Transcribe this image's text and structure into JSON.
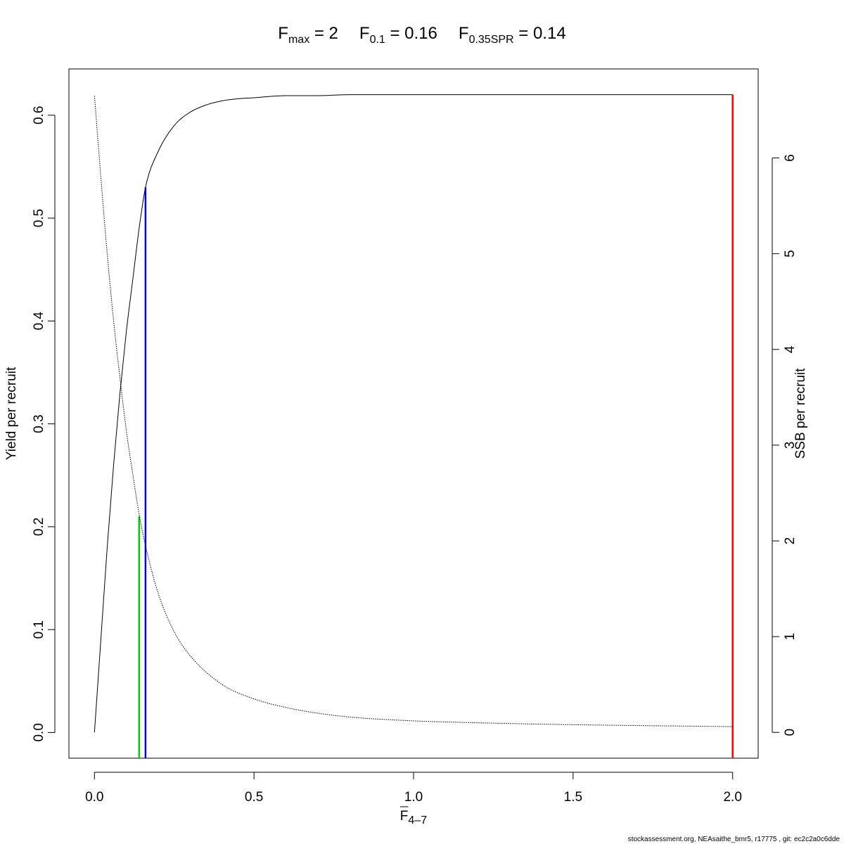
{
  "chart_data": {
    "type": "line",
    "title_parts": [
      {
        "base": "F",
        "sub": "max",
        "eq": " = 2"
      },
      {
        "base": "F",
        "sub": "0.1",
        "eq": " = 0.16"
      },
      {
        "base": "F",
        "sub": "0.35SPR",
        "eq": " = 0.14"
      }
    ],
    "xlabel": {
      "base": "F",
      "sub": "4–7"
    },
    "ylabel_left": "Yield per recruit",
    "ylabel_right": "SSB per recruit",
    "xlim": [
      -0.08,
      2.08
    ],
    "ylim_left": [
      -0.025,
      0.645
    ],
    "ylim_right": [
      -0.27,
      6.93
    ],
    "x_ticks": [
      {
        "value": 0.0,
        "label": "0.0"
      },
      {
        "value": 0.5,
        "label": "0.5"
      },
      {
        "value": 1.0,
        "label": "1.0"
      },
      {
        "value": 1.5,
        "label": "1.5"
      },
      {
        "value": 2.0,
        "label": "2.0"
      }
    ],
    "y_left_ticks": [
      {
        "value": 0.0,
        "label": "0.0"
      },
      {
        "value": 0.1,
        "label": "0.1"
      },
      {
        "value": 0.2,
        "label": "0.2"
      },
      {
        "value": 0.3,
        "label": "0.3"
      },
      {
        "value": 0.4,
        "label": "0.4"
      },
      {
        "value": 0.5,
        "label": "0.5"
      },
      {
        "value": 0.6,
        "label": "0.6"
      }
    ],
    "y_right_ticks": [
      {
        "value": 0,
        "label": "0"
      },
      {
        "value": 1,
        "label": "1"
      },
      {
        "value": 2,
        "label": "2"
      },
      {
        "value": 3,
        "label": "3"
      },
      {
        "value": 4,
        "label": "4"
      },
      {
        "value": 5,
        "label": "5"
      },
      {
        "value": 6,
        "label": "6"
      }
    ],
    "series": [
      {
        "key": "yield",
        "axis": "left",
        "style": "solid",
        "color": "#000000",
        "x": [
          0.0,
          0.02,
          0.04,
          0.06,
          0.08,
          0.1,
          0.12,
          0.14,
          0.16,
          0.2,
          0.25,
          0.3,
          0.35,
          0.4,
          0.45,
          0.5,
          0.6,
          0.7,
          0.8,
          1.0,
          1.2,
          1.5,
          2.0
        ],
        "y": [
          0.0,
          0.09,
          0.18,
          0.26,
          0.33,
          0.39,
          0.44,
          0.49,
          0.53,
          0.565,
          0.59,
          0.603,
          0.61,
          0.614,
          0.616,
          0.617,
          0.619,
          0.619,
          0.62,
          0.62,
          0.62,
          0.62,
          0.62
        ]
      },
      {
        "key": "ssb",
        "axis": "right",
        "style": "dotted",
        "color": "#000000",
        "x": [
          0.0,
          0.02,
          0.04,
          0.06,
          0.08,
          0.1,
          0.12,
          0.14,
          0.16,
          0.2,
          0.25,
          0.3,
          0.4,
          0.5,
          0.6,
          0.7,
          0.8,
          1.0,
          1.2,
          1.5,
          2.0
        ],
        "y": [
          6.65,
          5.8,
          5.0,
          4.3,
          3.7,
          3.15,
          2.7,
          2.28,
          1.95,
          1.45,
          1.05,
          0.8,
          0.5,
          0.35,
          0.26,
          0.2,
          0.16,
          0.12,
          0.1,
          0.08,
          0.06
        ]
      }
    ],
    "reference_lines": [
      {
        "key": "f035spr",
        "x": 0.14,
        "y_top": 0.21,
        "color": "#00cc00"
      },
      {
        "key": "f01",
        "x": 0.16,
        "y_top": 0.53,
        "color": "#0000ff"
      },
      {
        "key": "fmax",
        "x": 2.0,
        "y_top": 0.62,
        "color": "#ff0000"
      }
    ]
  },
  "footer": "stockassessment.org, NEAsaithe_bmr5, r17775 , git: ec2c2a0c6dde"
}
